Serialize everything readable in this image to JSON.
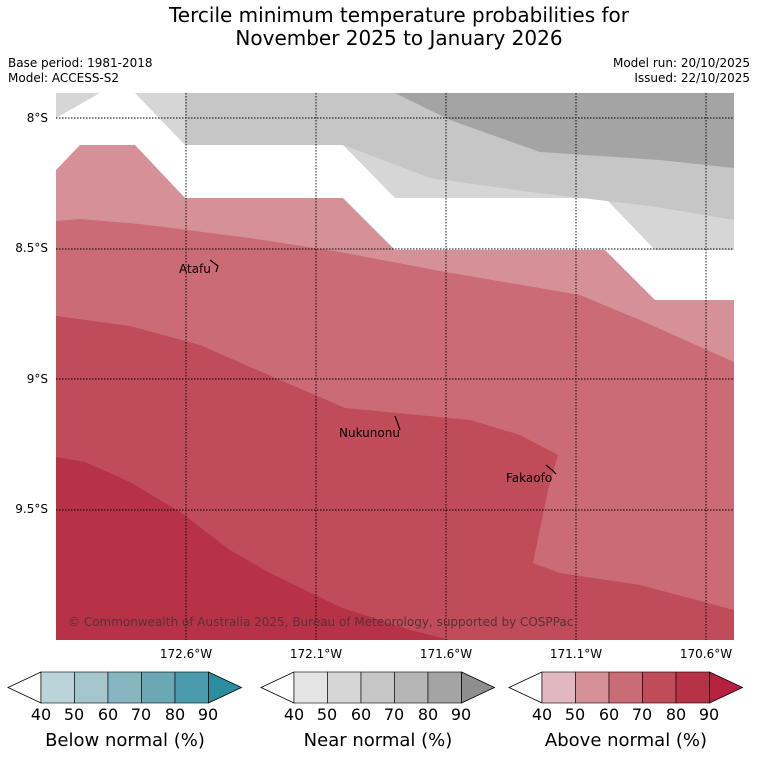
{
  "header": {
    "title_line1": "Tercile minimum temperature probabilities for",
    "title_line2": "November 2025 to January 2026",
    "base_period": "Base period: 1981-2018",
    "model": "Model: ACCESS-S2",
    "model_run": "Model run: 20/10/2025",
    "issued": "Issued: 22/10/2025"
  },
  "map": {
    "lat_labels": [
      "8°S",
      "8.5°S",
      "9°S",
      "9.5°S"
    ],
    "lon_labels": [
      "172.6°W",
      "172.1°W",
      "171.6°W",
      "171.1°W",
      "170.6°W"
    ],
    "places": [
      "Atafu",
      "Nukunonu",
      "Fakaofo"
    ],
    "copyright": "© Commonwealth of Australia 2025, Bureau of Meteorology, supported by COSPPac"
  },
  "colorbars": [
    {
      "label": "Below normal (%)",
      "ticks": [
        "40",
        "50",
        "60",
        "70",
        "80",
        "90"
      ],
      "colors": [
        "#ffffff",
        "#bbd4da",
        "#a4c6cc",
        "#87b6c0",
        "#6aa8b4",
        "#4a9cac",
        "#2a8e9e"
      ]
    },
    {
      "label": "Near normal (%)",
      "ticks": [
        "40",
        "50",
        "60",
        "70",
        "80",
        "90"
      ],
      "colors": [
        "#ffffff",
        "#e4e4e4",
        "#d6d6d6",
        "#c6c6c6",
        "#b6b6b6",
        "#a4a4a4",
        "#8e8e8e"
      ]
    },
    {
      "label": "Above normal (%)",
      "ticks": [
        "40",
        "50",
        "60",
        "70",
        "80",
        "90"
      ],
      "colors": [
        "#ffffff",
        "#e2b8c0",
        "#d69198",
        "#cb6b76",
        "#c04b59",
        "#b73247",
        "#b82040"
      ]
    }
  ]
}
